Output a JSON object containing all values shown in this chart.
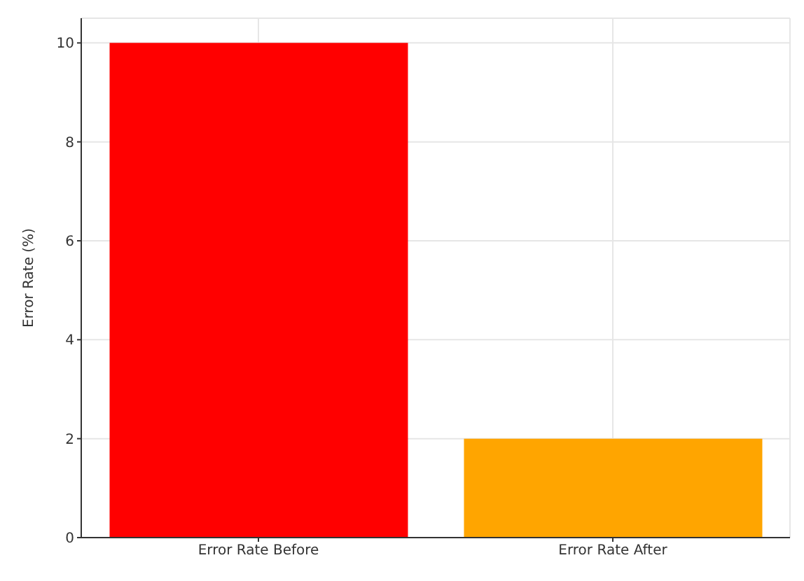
{
  "chart_data": {
    "type": "bar",
    "ylabel": "Error Rate (%)",
    "categories": [
      "Error Rate Before",
      "Error Rate After"
    ],
    "values": [
      10,
      2
    ],
    "colors": [
      "#ff0000",
      "#ffa500"
    ],
    "ylim": [
      0,
      10.5
    ],
    "yticks": [
      0,
      2,
      4,
      6,
      8,
      10
    ],
    "grid": true
  }
}
